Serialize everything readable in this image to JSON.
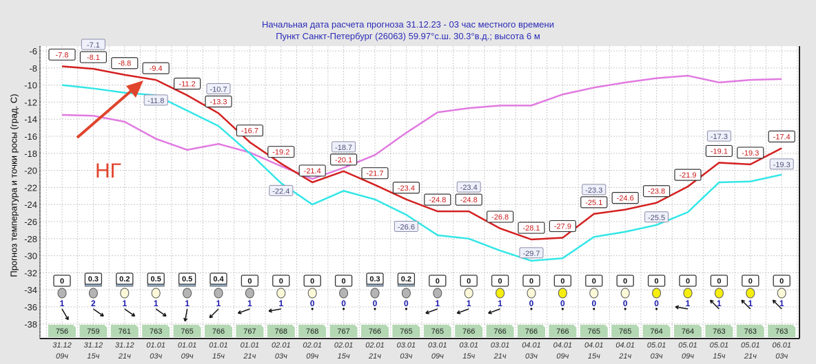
{
  "header": {
    "line1": "Начальная дата расчета прогноза 31.12.23 - 03 час местного времени",
    "line2": "Пункт  Санкт-Петербург (26063)   59.97°с.ш.  30.3°в.д.; высота 6 м"
  },
  "annotation": {
    "text": "НГ",
    "color": "#e0442c"
  },
  "chart_data": {
    "type": "line",
    "ylabel": "Прогноз температура и точки росы (град. С)",
    "ylim": [
      -39.5,
      -5.5
    ],
    "yticks": [
      -6,
      -8,
      -10,
      -12,
      -14,
      -16,
      -18,
      -20,
      -22,
      -24,
      -26,
      -28,
      -30,
      -32,
      -34,
      -36,
      -38
    ],
    "grid": true,
    "x_dates": [
      "31.12",
      "31.12",
      "31.12",
      "01.01",
      "01.01",
      "01.01",
      "01.01",
      "02.01",
      "02.01",
      "02.01",
      "02.01",
      "03.01",
      "03.01",
      "03.01",
      "03.01",
      "04.01",
      "04.01",
      "04.01",
      "04.01",
      "05.01",
      "05.01",
      "05.01",
      "05.01",
      "06.01"
    ],
    "x_hours": [
      "09ч",
      "15ч",
      "21ч",
      "03ч",
      "09ч",
      "15ч",
      "21ч",
      "03ч",
      "09ч",
      "15ч",
      "21ч",
      "03ч",
      "09ч",
      "15ч",
      "21ч",
      "03ч",
      "09ч",
      "15ч",
      "21ч",
      "03ч",
      "09ч",
      "15ч",
      "21ч",
      "03ч"
    ],
    "series": [
      {
        "color": "#d42020",
        "values": [
          -7.8,
          -8.1,
          -8.8,
          -9.4,
          -11.2,
          -13.3,
          -16.7,
          -19.2,
          -21.4,
          -20.1,
          -21.7,
          -23.4,
          -24.8,
          -24.8,
          -26.8,
          -28.1,
          -27.9,
          -25.1,
          -24.6,
          -23.8,
          -21.9,
          -19.1,
          -19.3,
          -17.4
        ],
        "labels": [
          "-7.8",
          "-8.1",
          "-8.8",
          "-9.4",
          "-11.2",
          "-13.3",
          "-16.7",
          "-19.2",
          "-21.4",
          "-20.1",
          "-21.7",
          "-23.4",
          "-24.8",
          "-24.8",
          "-26.8",
          "-28.1",
          "-27.9",
          "-25.1",
          "-24.6",
          "-23.8",
          "-21.9",
          "-19.1",
          "-19.3",
          "-17.4"
        ]
      },
      {
        "color": "#33e6e6",
        "values": [
          -10.0,
          -10.4,
          -10.9,
          -11.2,
          -13.0,
          -14.8,
          -18.0,
          -21.5,
          -24.0,
          -22.4,
          -23.4,
          -25.2,
          -27.6,
          -28.0,
          -29.4,
          -30.6,
          -30.3,
          -27.8,
          -27.2,
          -26.4,
          -24.9,
          -21.4,
          -21.3,
          -20.5
        ]
      },
      {
        "color": "#e07ae0",
        "values": [
          -13.5,
          -13.6,
          -14.3,
          -16.3,
          -17.6,
          -16.9,
          -17.9,
          -19.5,
          -21.0,
          -19.7,
          -18.2,
          -15.6,
          -13.2,
          -12.7,
          -12.4,
          -12.4,
          -11.1,
          -10.3,
          -9.7,
          -9.2,
          -8.9,
          -9.7,
          -9.4,
          -9.3
        ]
      }
    ],
    "extreme_labels": [
      {
        "i": 1,
        "v": -7.1,
        "text": "-7.1"
      },
      {
        "i": 3,
        "v": -11.8,
        "text": "-11.8"
      },
      {
        "i": 5,
        "v": -10.7,
        "text": "-10.7"
      },
      {
        "i": 7,
        "v": -22.4,
        "text": "-22.4"
      },
      {
        "i": 9,
        "v": -18.7,
        "text": "-18.7"
      },
      {
        "i": 11,
        "v": -26.6,
        "text": "-26.6"
      },
      {
        "i": 13,
        "v": -23.4,
        "text": "-23.4"
      },
      {
        "i": 15,
        "v": -29.7,
        "text": "-29.7"
      },
      {
        "i": 17,
        "v": -23.3,
        "text": "-23.3"
      },
      {
        "i": 19,
        "v": -25.5,
        "text": "-25.5"
      },
      {
        "i": 21,
        "v": -17.3,
        "text": "-17.3"
      },
      {
        "i": 23,
        "v": -19.3,
        "text": "-19.3"
      }
    ],
    "precipitation": [
      "0",
      "0.3",
      "0.2",
      "0.5",
      "0.5",
      "0.4",
      "0",
      "0",
      "0",
      "0",
      "0.3",
      "0.2",
      "0",
      "0",
      "0",
      "0",
      "0",
      "0",
      "0",
      "0",
      "0",
      "0",
      "0",
      "0"
    ],
    "cloud": [
      "overcast",
      "overcast",
      "light",
      "light",
      "overcast",
      "overcast",
      "overcast",
      "light",
      "light",
      "overcast",
      "overcast",
      "overcast",
      "overcast",
      "light",
      "sun",
      "light",
      "sun",
      "light",
      "light",
      "sun",
      "sun",
      "sun",
      "sun",
      "light"
    ],
    "cloud_colors": {
      "overcast": "#b4b4b4",
      "light": "#fbf8d8",
      "sun": "#f5ee10"
    },
    "wind_speed": [
      "1",
      "2",
      "1",
      "1",
      "1",
      "1",
      "1",
      "1",
      "0",
      "0",
      "0",
      "0",
      "1",
      "1",
      "1",
      "0",
      "0",
      "0",
      "0",
      "0",
      "1",
      "1",
      "1",
      "1"
    ],
    "wind_arrow_deg": [
      60,
      35,
      35,
      35,
      100,
      135,
      160,
      170,
      null,
      null,
      null,
      null,
      160,
      160,
      160,
      null,
      null,
      null,
      null,
      null,
      190,
      225,
      225,
      225
    ],
    "pressure": [
      "756",
      "759",
      "761",
      "763",
      "765",
      "766",
      "767",
      "768",
      "768",
      "767",
      "766",
      "765",
      "765",
      "766",
      "766",
      "766",
      "766",
      "765",
      "765",
      "764",
      "764",
      "763",
      "763",
      "763"
    ]
  }
}
